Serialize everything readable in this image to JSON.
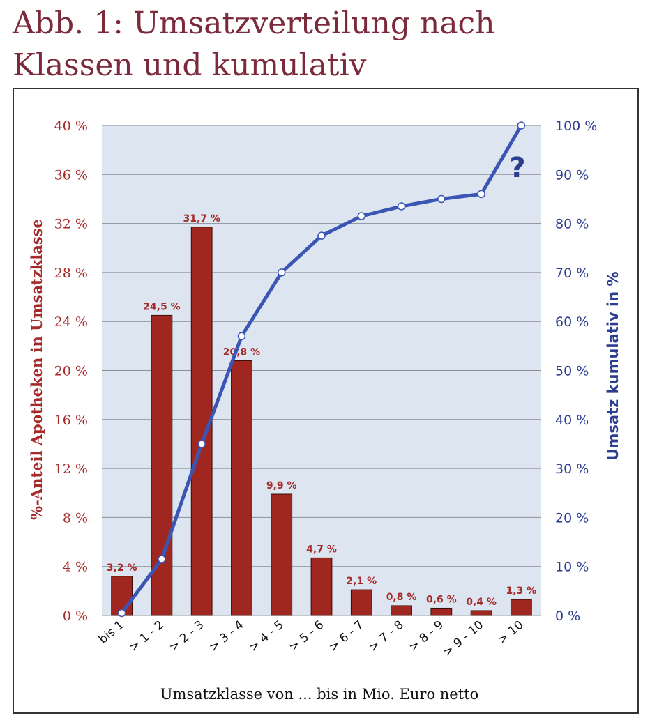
{
  "title_line1": "Abb. 1: Umsatzverteilung nach",
  "title_line2": "Klassen und kumulativ",
  "annotation": "?",
  "chart_data": {
    "type": "bar",
    "categories": [
      "bis 1",
      "> 1 - 2",
      "> 2 - 3",
      "> 3 - 4",
      "> 4 - 5",
      "> 5 - 6",
      "> 6 - 7",
      "> 7 - 8",
      "> 8 - 9",
      "> 9 - 10",
      "> 10"
    ],
    "series": [
      {
        "type": "bar",
        "axis": "left",
        "values": [
          3.2,
          24.5,
          31.7,
          20.8,
          9.9,
          4.7,
          2.1,
          0.8,
          0.6,
          0.4,
          1.3
        ],
        "labels": [
          "3,2 %",
          "24,5 %",
          "31,7 %",
          "20,8 %",
          "9,9 %",
          "4,7 %",
          "2,1 %",
          "0,8 %",
          "0,6 %",
          "0,4 %",
          "1,3 %"
        ],
        "color": "#a0271f"
      },
      {
        "type": "line",
        "axis": "right",
        "values": [
          0.5,
          11.5,
          35,
          57,
          70,
          77.5,
          81.5,
          83.5,
          85,
          86,
          100
        ],
        "color": "#3b55b4"
      }
    ],
    "ylabel_left": "%-Anteil Apotheken in Umsatzklasse",
    "ylabel_right": "Umsatz kumulativ in %",
    "xlabel": "Umsatzklasse von ... bis in Mio. Euro netto",
    "ylim_left": [
      0,
      40
    ],
    "ylim_right": [
      0,
      100
    ],
    "yticks_left": [
      "0 %",
      "4 %",
      "8 %",
      "12 %",
      "16 %",
      "20 %",
      "24 %",
      "28 %",
      "32 %",
      "36 %",
      "40 %"
    ],
    "yticks_right": [
      "0 %",
      "10 %",
      "20 %",
      "30 %",
      "40 %",
      "50 %",
      "60 %",
      "70 %",
      "80 %",
      "90 %",
      "100 %"
    ],
    "grid": true,
    "plot_background": "#dde5f0",
    "grid_color": "#8a8f99"
  }
}
